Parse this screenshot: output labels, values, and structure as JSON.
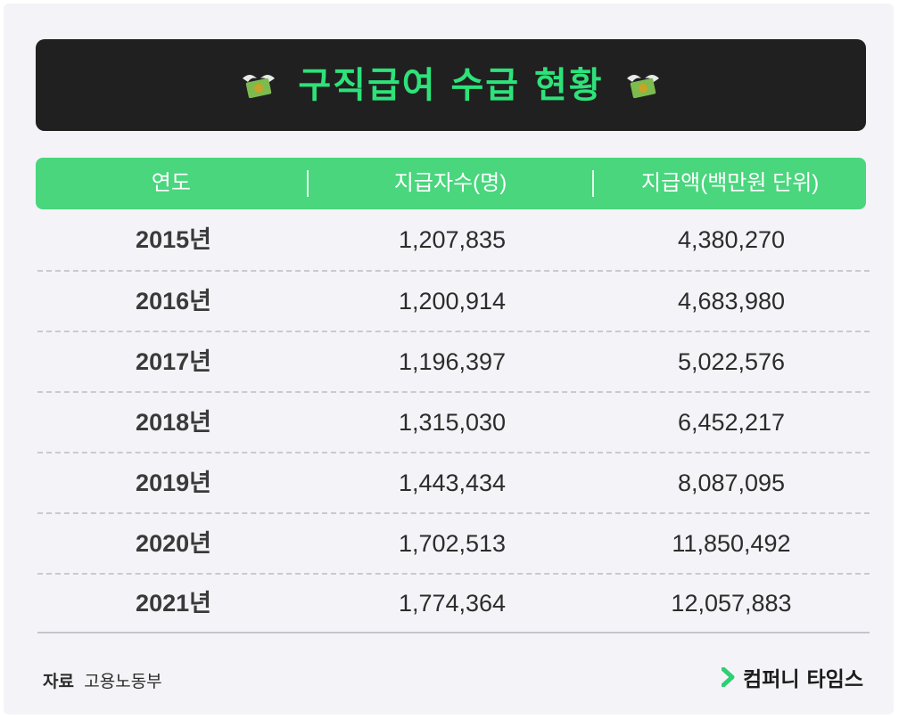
{
  "theme": {
    "accent": "#49d67d",
    "title_color": "#2ee27a",
    "banner_bg": "#202020"
  },
  "banner": {
    "title": "구직급여 수급 현황",
    "left_icon": "money-with-wings-icon",
    "right_icon": "money-with-wings-icon"
  },
  "table": {
    "headers": [
      "연도",
      "지급자수(명)",
      "지급액(백만원 단위)"
    ],
    "rows": [
      {
        "year": "2015년",
        "count": "1,207,835",
        "amount": "4,380,270"
      },
      {
        "year": "2016년",
        "count": "1,200,914",
        "amount": "4,683,980"
      },
      {
        "year": "2017년",
        "count": "1,196,397",
        "amount": "5,022,576"
      },
      {
        "year": "2018년",
        "count": "1,315,030",
        "amount": "6,452,217"
      },
      {
        "year": "2019년",
        "count": "1,443,434",
        "amount": "8,087,095"
      },
      {
        "year": "2020년",
        "count": "1,702,513",
        "amount": "11,850,492"
      },
      {
        "year": "2021년",
        "count": "1,774,364",
        "amount": "12,057,883"
      }
    ]
  },
  "footer": {
    "source_label": "자료",
    "source_value": "고용노동부",
    "brand_icon": "chevron-right-icon",
    "brand_name": "컴퍼니 타임스"
  }
}
